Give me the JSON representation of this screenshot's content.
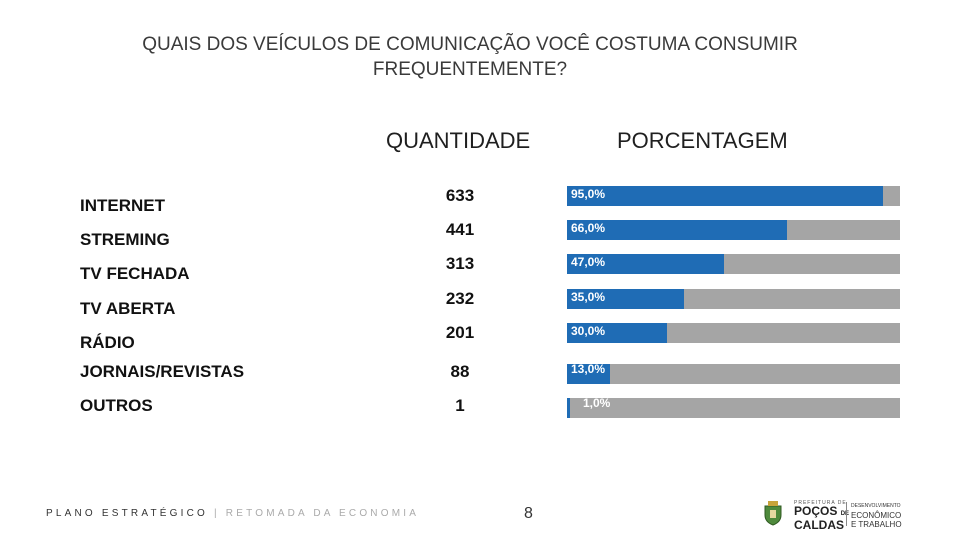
{
  "title": {
    "line1": "QUAIS DOS VEÍCULOS DE COMUNICAÇÃO VOCÊ COSTUMA CONSUMIR",
    "line2": "FREQUENTEMENTE?"
  },
  "headers": {
    "quantity": "QUANTIDADE",
    "percentage": "PORCENTAGEM"
  },
  "colors": {
    "bar_fill": "#1f6cb5",
    "bar_track": "#a5a5a5"
  },
  "chart_data": {
    "type": "bar",
    "categories": [
      "INTERNET",
      "STREMING",
      "TV FECHADA",
      "TV ABERTA",
      "RÁDIO",
      "JORNAIS/REVISTAS",
      "OUTROS"
    ],
    "quantities": [
      "633",
      "441",
      "313",
      "232",
      "201",
      "88",
      "1"
    ],
    "values": [
      95.0,
      66.0,
      47.0,
      35.0,
      30.0,
      13.0,
      1.0
    ],
    "value_labels": [
      "95,0%",
      "66,0%",
      "47,0%",
      "35,0%",
      "30,0%",
      "13,0%",
      "1,0%"
    ],
    "xlim": [
      0,
      100
    ]
  },
  "footer": {
    "plan": "PLANO ESTRATÉGICO",
    "separator": "|",
    "subtitle": "RETOMADA DA ECONOMIA",
    "page_number": "8"
  },
  "logo": {
    "top_text": "PREFEITURA DE",
    "city_line1": "POÇOS",
    "city_de": "DE",
    "city_line2": "CALDAS",
    "dept_line1": "DESENVOLVIMENTO",
    "dept_line2": "ECONÔMICO",
    "dept_line3": "E TRABALHO",
    "icon": "city-crest-icon"
  }
}
